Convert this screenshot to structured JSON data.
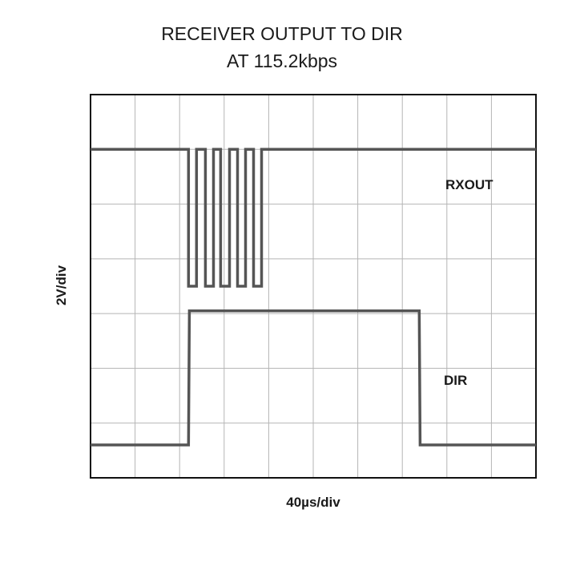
{
  "chart_data": {
    "type": "line",
    "title": "RECEIVER OUTPUT TO DIR",
    "subtitle": "AT 115.2kbps",
    "xlabel": "40µs/div",
    "ylabel": "2V/div",
    "divisions": {
      "x": 10,
      "y": 7
    },
    "grid": true,
    "series": [
      {
        "name": "RXOUT",
        "x": [
          0,
          2.2,
          2.2,
          2.38,
          2.38,
          2.58,
          2.58,
          2.76,
          2.76,
          2.92,
          2.92,
          3.12,
          3.12,
          3.3,
          3.3,
          3.48,
          3.48,
          3.66,
          3.66,
          3.84,
          3.84,
          10
        ],
        "y": [
          6,
          6,
          3.5,
          3.5,
          6,
          6,
          3.5,
          3.5,
          6,
          6,
          3.5,
          3.5,
          6,
          6,
          3.5,
          3.5,
          6,
          6,
          3.5,
          3.5,
          6,
          6
        ]
      },
      {
        "name": "DIR",
        "x": [
          0,
          2.2,
          2.22,
          7.38,
          7.4,
          10
        ],
        "y": [
          0.6,
          0.6,
          3.05,
          3.05,
          0.6,
          0.6
        ]
      }
    ]
  },
  "color": "#555555"
}
